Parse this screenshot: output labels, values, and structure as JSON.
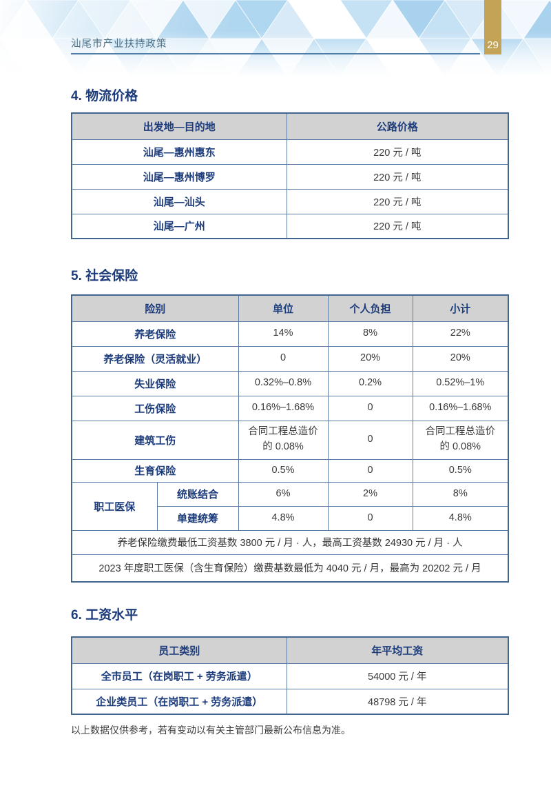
{
  "header": {
    "doc_title": "汕尾市产业扶持政策",
    "page_number": "29",
    "pattern_colors": [
      "#ffffff",
      "#eaf4fb",
      "#d8eaf7",
      "#c5e1f4",
      "#b0d7f0",
      "#f2f8fd",
      "#a8d2ee"
    ]
  },
  "logistics": {
    "title": "4. 物流价格",
    "headers": {
      "c1": "出发地—目的地",
      "c2": "公路价格"
    },
    "rows": [
      {
        "route": "汕尾—惠州惠东",
        "price": "220 元 / 吨"
      },
      {
        "route": "汕尾—惠州博罗",
        "price": "220 元 / 吨"
      },
      {
        "route": "汕尾—汕头",
        "price": "220 元 / 吨"
      },
      {
        "route": "汕尾—广州",
        "price": "220 元 / 吨"
      }
    ]
  },
  "social": {
    "title": "5. 社会保险",
    "headers": {
      "c1": "险别",
      "c2": "单位",
      "c3": "个人负担",
      "c4": "小计"
    },
    "rows": [
      {
        "label": "养老保险",
        "unit": "14%",
        "personal": "8%",
        "subtotal": "22%"
      },
      {
        "label": "养老保险（灵活就业）",
        "unit": "0",
        "personal": "20%",
        "subtotal": "20%"
      },
      {
        "label": "失业保险",
        "unit": "0.32%–0.8%",
        "personal": "0.2%",
        "subtotal": "0.52%–1%"
      },
      {
        "label": "工伤保险",
        "unit": "0.16%–1.68%",
        "personal": "0",
        "subtotal": "0.16%–1.68%"
      },
      {
        "label": "建筑工伤",
        "unit": "合同工程总造价的 0.08%",
        "personal": "0",
        "subtotal": "合同工程总造价的 0.08%"
      },
      {
        "label": "生育保险",
        "unit": "0.5%",
        "personal": "0",
        "subtotal": "0.5%"
      }
    ],
    "medical": {
      "group_label": "职工医保",
      "sub_rows": [
        {
          "label": "统账结合",
          "unit": "6%",
          "personal": "2%",
          "subtotal": "8%"
        },
        {
          "label": "单建统筹",
          "unit": "4.8%",
          "personal": "0",
          "subtotal": "4.8%"
        }
      ]
    },
    "notes": [
      "养老保险缴费最低工资基数 3800 元 / 月 · 人，最高工资基数 24930 元 / 月 · 人",
      "2023 年度职工医保（含生育保险）缴费基数最低为 4040 元 / 月，最高为 20202 元 / 月"
    ]
  },
  "wages": {
    "title": "6. 工资水平",
    "headers": {
      "c1": "员工类别",
      "c2": "年平均工资"
    },
    "rows": [
      {
        "category": "全市员工（在岗职工 + 劳务派遣）",
        "salary": "54000 元 / 年"
      },
      {
        "category": "企业类员工（在岗职工 + 劳务派遣）",
        "salary": "48798 元 / 年"
      }
    ]
  },
  "footer_note": "以上数据仅供参考，若有变动以有关主管部门最新公布信息为准。",
  "colors": {
    "navy": "#1d3c7c",
    "body_text": "#3a3a3a",
    "table_border_outer": "#42658e",
    "table_border_inner": "#5b7ca3",
    "table_header_bg": "#d2d2d2",
    "gold_bar": "#c3a355",
    "header_title": "#4e7087",
    "header_rule": "#4d7ca6"
  }
}
